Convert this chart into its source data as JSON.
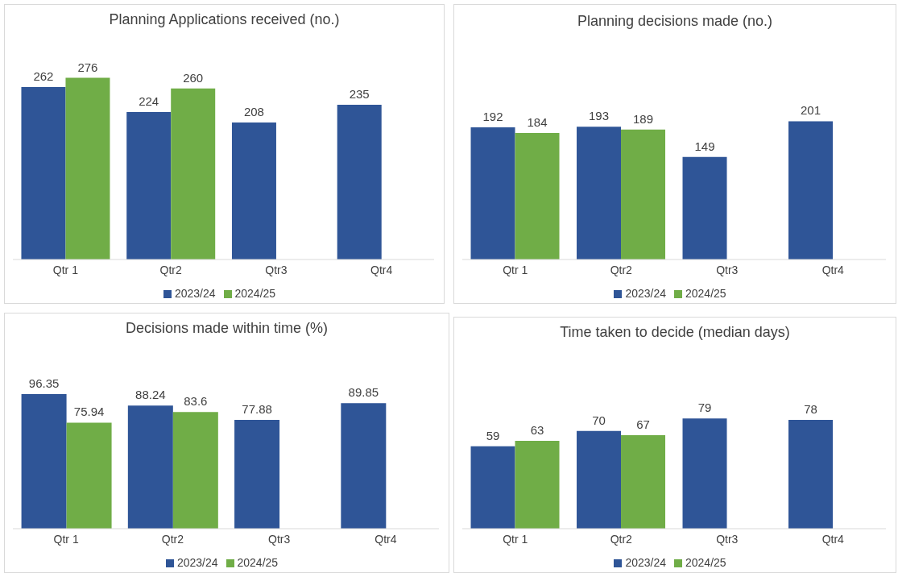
{
  "chart_data": [
    {
      "type": "bar",
      "title": "Planning Applications received (no.)",
      "categories": [
        "Qtr 1",
        "Qtr2",
        "Qtr3",
        "Qtr4"
      ],
      "series": [
        {
          "name": "2023/24",
          "color": "#2f5597",
          "values": [
            262,
            224,
            208,
            235
          ]
        },
        {
          "name": "2024/25",
          "color": "#70ad47",
          "values": [
            276,
            260,
            null,
            null
          ]
        }
      ],
      "data_labels": true,
      "legend": "bottom",
      "grid": false,
      "tick_labels": "x"
    },
    {
      "type": "bar",
      "title": "Planning decisions made (no.)",
      "categories": [
        "Qtr 1",
        "Qtr2",
        "Qtr3",
        "Qtr4"
      ],
      "series": [
        {
          "name": "2023/24",
          "color": "#2f5597",
          "values": [
            192,
            193,
            149,
            201
          ]
        },
        {
          "name": "2024/25",
          "color": "#70ad47",
          "values": [
            184,
            189,
            null,
            null
          ]
        }
      ],
      "data_labels": true,
      "legend": "bottom",
      "grid": false,
      "tick_labels": "x"
    },
    {
      "type": "bar",
      "title": "Decisions made within time (%)",
      "categories": [
        "Qtr 1",
        "Qtr2",
        "Qtr3",
        "Qtr4"
      ],
      "series": [
        {
          "name": "2023/24",
          "color": "#2f5597",
          "values": [
            96.35,
            88.24,
            77.88,
            89.85
          ]
        },
        {
          "name": "2024/25",
          "color": "#70ad47",
          "values": [
            75.94,
            83.6,
            null,
            null
          ]
        }
      ],
      "data_labels": true,
      "legend": "bottom",
      "grid": false,
      "tick_labels": "x"
    },
    {
      "type": "bar",
      "title": "Time taken to decide (median days)",
      "categories": [
        "Qtr 1",
        "Qtr2",
        "Qtr3",
        "Qtr4"
      ],
      "series": [
        {
          "name": "2023/24",
          "color": "#2f5597",
          "values": [
            59,
            70,
            79,
            78
          ]
        },
        {
          "name": "2024/25",
          "color": "#70ad47",
          "values": [
            63,
            67,
            null,
            null
          ]
        }
      ],
      "data_labels": true,
      "legend": "bottom",
      "grid": false,
      "tick_labels": "x"
    }
  ]
}
